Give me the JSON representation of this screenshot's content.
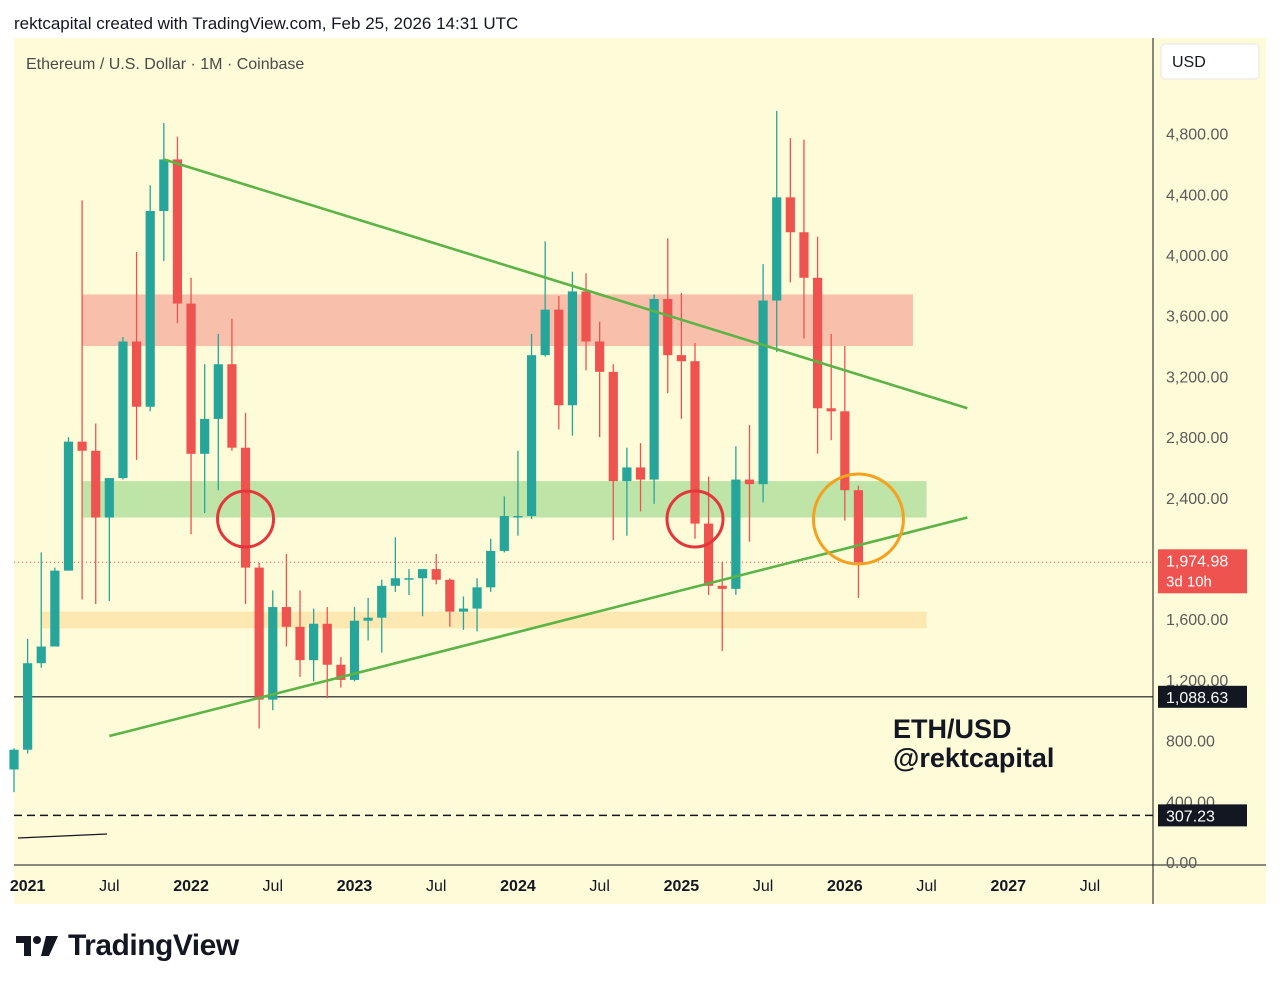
{
  "header": {
    "attribution": "rektcapital created with TradingView.com, Feb 25, 2026 14:31 UTC"
  },
  "chart_header": {
    "symbol_info": "Ethereum / U.S. Dollar · 1M · Coinbase",
    "currency_button": "USD"
  },
  "watermark": {
    "line1": "ETH/USD",
    "line2": "@rektcapital"
  },
  "footer": {
    "brand": "TradingView"
  },
  "colors": {
    "background": "#fefbd9",
    "up": "#26a69a",
    "down": "#ef5350",
    "trendline": "#5cb346",
    "resistance_zone": "#f7b8a4",
    "support_zone": "#b7e1a1",
    "lower_zone": "#fde5ac",
    "circle_red": "#e5373b",
    "circle_orange": "#f4a120"
  },
  "chart_data": {
    "type": "candlestick",
    "title": "Ethereum / U.S. Dollar · 1M · Coinbase",
    "y_scale": "linear",
    "ylim": [
      0,
      5300
    ],
    "y_ticks": [
      {
        "value": 4800,
        "label": "4,800.00"
      },
      {
        "value": 4400,
        "label": "4,400.00"
      },
      {
        "value": 4000,
        "label": "4,000.00"
      },
      {
        "value": 3600,
        "label": "3,600.00"
      },
      {
        "value": 3200,
        "label": "3,200.00"
      },
      {
        "value": 2800,
        "label": "2,800.00"
      },
      {
        "value": 2400,
        "label": "2,400.00"
      },
      {
        "value": 1600,
        "label": "1,600.00"
      },
      {
        "value": 1200,
        "label": "1,200.00"
      },
      {
        "value": 800,
        "label": "800.00"
      },
      {
        "value": 400,
        "label": "400.00"
      },
      {
        "value": 0,
        "label": "0.00"
      }
    ],
    "x_ticks": [
      {
        "date": "2021-01",
        "label": "2021",
        "bold": true
      },
      {
        "date": "2021-07",
        "label": "Jul",
        "bold": false
      },
      {
        "date": "2022-01",
        "label": "2022",
        "bold": true
      },
      {
        "date": "2022-07",
        "label": "Jul",
        "bold": false
      },
      {
        "date": "2023-01",
        "label": "2023",
        "bold": true
      },
      {
        "date": "2023-07",
        "label": "Jul",
        "bold": false
      },
      {
        "date": "2024-01",
        "label": "2024",
        "bold": true
      },
      {
        "date": "2024-07",
        "label": "Jul",
        "bold": false
      },
      {
        "date": "2025-01",
        "label": "2025",
        "bold": true
      },
      {
        "date": "2025-07",
        "label": "Jul",
        "bold": false
      },
      {
        "date": "2026-01",
        "label": "2026",
        "bold": true
      },
      {
        "date": "2026-07",
        "label": "Jul",
        "bold": false
      },
      {
        "date": "2027-01",
        "label": "2027",
        "bold": true
      },
      {
        "date": "2027-07",
        "label": "Jul",
        "bold": false
      }
    ],
    "candles": [
      {
        "date": "2020-12",
        "o": 610,
        "h": 750,
        "l": 460,
        "c": 740
      },
      {
        "date": "2021-01",
        "o": 740,
        "h": 1470,
        "l": 715,
        "c": 1310
      },
      {
        "date": "2021-02",
        "o": 1310,
        "h": 2040,
        "l": 1280,
        "c": 1420
      },
      {
        "date": "2021-03",
        "o": 1420,
        "h": 1940,
        "l": 1430,
        "c": 1920
      },
      {
        "date": "2021-04",
        "o": 1920,
        "h": 2800,
        "l": 1920,
        "c": 2770
      },
      {
        "date": "2021-05",
        "o": 2770,
        "h": 4360,
        "l": 1730,
        "c": 2710
      },
      {
        "date": "2021-06",
        "o": 2710,
        "h": 2890,
        "l": 1700,
        "c": 2270
      },
      {
        "date": "2021-07",
        "o": 2270,
        "h": 2530,
        "l": 1720,
        "c": 2530
      },
      {
        "date": "2021-08",
        "o": 2530,
        "h": 3460,
        "l": 2520,
        "c": 3430
      },
      {
        "date": "2021-09",
        "o": 3430,
        "h": 4020,
        "l": 2650,
        "c": 3000
      },
      {
        "date": "2021-10",
        "o": 3000,
        "h": 4460,
        "l": 2970,
        "c": 4290
      },
      {
        "date": "2021-11",
        "o": 4290,
        "h": 4870,
        "l": 3960,
        "c": 4630
      },
      {
        "date": "2021-12",
        "o": 4630,
        "h": 4780,
        "l": 3550,
        "c": 3680
      },
      {
        "date": "2022-01",
        "o": 3680,
        "h": 3850,
        "l": 2160,
        "c": 2690
      },
      {
        "date": "2022-02",
        "o": 2690,
        "h": 3280,
        "l": 2300,
        "c": 2920
      },
      {
        "date": "2022-03",
        "o": 2920,
        "h": 3480,
        "l": 2450,
        "c": 3280
      },
      {
        "date": "2022-04",
        "o": 3280,
        "h": 3580,
        "l": 2710,
        "c": 2730
      },
      {
        "date": "2022-05",
        "o": 2730,
        "h": 2960,
        "l": 1700,
        "c": 1940
      },
      {
        "date": "2022-06",
        "o": 1940,
        "h": 1970,
        "l": 880,
        "c": 1070
      },
      {
        "date": "2022-07",
        "o": 1070,
        "h": 1790,
        "l": 1000,
        "c": 1680
      },
      {
        "date": "2022-08",
        "o": 1680,
        "h": 2030,
        "l": 1420,
        "c": 1550
      },
      {
        "date": "2022-09",
        "o": 1550,
        "h": 1790,
        "l": 1220,
        "c": 1330
      },
      {
        "date": "2022-10",
        "o": 1330,
        "h": 1670,
        "l": 1190,
        "c": 1570
      },
      {
        "date": "2022-11",
        "o": 1570,
        "h": 1680,
        "l": 1080,
        "c": 1300
      },
      {
        "date": "2022-12",
        "o": 1300,
        "h": 1350,
        "l": 1150,
        "c": 1200
      },
      {
        "date": "2023-01",
        "o": 1200,
        "h": 1680,
        "l": 1190,
        "c": 1590
      },
      {
        "date": "2023-02",
        "o": 1590,
        "h": 1740,
        "l": 1460,
        "c": 1610
      },
      {
        "date": "2023-03",
        "o": 1610,
        "h": 1860,
        "l": 1380,
        "c": 1820
      },
      {
        "date": "2023-04",
        "o": 1820,
        "h": 2140,
        "l": 1780,
        "c": 1870
      },
      {
        "date": "2023-05",
        "o": 1870,
        "h": 1930,
        "l": 1760,
        "c": 1870
      },
      {
        "date": "2023-06",
        "o": 1870,
        "h": 1930,
        "l": 1620,
        "c": 1930
      },
      {
        "date": "2023-07",
        "o": 1930,
        "h": 2030,
        "l": 1830,
        "c": 1860
      },
      {
        "date": "2023-08",
        "o": 1860,
        "h": 1870,
        "l": 1550,
        "c": 1650
      },
      {
        "date": "2023-09",
        "o": 1650,
        "h": 1750,
        "l": 1530,
        "c": 1670
      },
      {
        "date": "2023-10",
        "o": 1670,
        "h": 1870,
        "l": 1520,
        "c": 1810
      },
      {
        "date": "2023-11",
        "o": 1810,
        "h": 2130,
        "l": 1780,
        "c": 2050
      },
      {
        "date": "2023-12",
        "o": 2050,
        "h": 2410,
        "l": 2040,
        "c": 2280
      },
      {
        "date": "2024-01",
        "o": 2280,
        "h": 2710,
        "l": 2150,
        "c": 2280
      },
      {
        "date": "2024-02",
        "o": 2280,
        "h": 3480,
        "l": 2260,
        "c": 3340
      },
      {
        "date": "2024-03",
        "o": 3340,
        "h": 4090,
        "l": 3330,
        "c": 3640
      },
      {
        "date": "2024-04",
        "o": 3640,
        "h": 3730,
        "l": 2850,
        "c": 3010
      },
      {
        "date": "2024-05",
        "o": 3010,
        "h": 3890,
        "l": 2810,
        "c": 3760
      },
      {
        "date": "2024-06",
        "o": 3760,
        "h": 3880,
        "l": 3240,
        "c": 3430
      },
      {
        "date": "2024-07",
        "o": 3430,
        "h": 3560,
        "l": 2800,
        "c": 3230
      },
      {
        "date": "2024-08",
        "o": 3230,
        "h": 3280,
        "l": 2120,
        "c": 2510
      },
      {
        "date": "2024-09",
        "o": 2510,
        "h": 2730,
        "l": 2150,
        "c": 2600
      },
      {
        "date": "2024-10",
        "o": 2600,
        "h": 2760,
        "l": 2310,
        "c": 2520
      },
      {
        "date": "2024-11",
        "o": 2520,
        "h": 3740,
        "l": 2360,
        "c": 3710
      },
      {
        "date": "2024-12",
        "o": 3710,
        "h": 4110,
        "l": 3090,
        "c": 3340
      },
      {
        "date": "2025-01",
        "o": 3340,
        "h": 3750,
        "l": 2920,
        "c": 3300
      },
      {
        "date": "2025-02",
        "o": 3300,
        "h": 3420,
        "l": 2130,
        "c": 2230
      },
      {
        "date": "2025-03",
        "o": 2230,
        "h": 2540,
        "l": 1760,
        "c": 1820
      },
      {
        "date": "2025-04",
        "o": 1820,
        "h": 1980,
        "l": 1390,
        "c": 1800
      },
      {
        "date": "2025-05",
        "o": 1800,
        "h": 2740,
        "l": 1760,
        "c": 2520
      },
      {
        "date": "2025-06",
        "o": 2520,
        "h": 2880,
        "l": 2110,
        "c": 2490
      },
      {
        "date": "2025-07",
        "o": 2490,
        "h": 3940,
        "l": 2370,
        "c": 3700
      },
      {
        "date": "2025-08",
        "o": 3700,
        "h": 4950,
        "l": 3360,
        "c": 4380
      },
      {
        "date": "2025-09",
        "o": 4380,
        "h": 4770,
        "l": 3820,
        "c": 4150
      },
      {
        "date": "2025-10",
        "o": 4150,
        "h": 4760,
        "l": 3450,
        "c": 3850
      },
      {
        "date": "2025-11",
        "o": 3850,
        "h": 4120,
        "l": 2690,
        "c": 2990
      },
      {
        "date": "2025-12",
        "o": 2990,
        "h": 3480,
        "l": 2780,
        "c": 2970
      },
      {
        "date": "2026-01",
        "o": 2970,
        "h": 3400,
        "l": 2250,
        "c": 2450
      },
      {
        "date": "2026-02",
        "o": 2450,
        "h": 2480,
        "l": 1740,
        "c": 1975
      }
    ],
    "zones": [
      {
        "name": "resistance",
        "y_from": 3400,
        "y_to": 3740,
        "x_from": "2021-05",
        "x_to": "2026-06"
      },
      {
        "name": "support",
        "y_from": 2270,
        "y_to": 2510,
        "x_from": "2021-05",
        "x_to": "2026-07"
      },
      {
        "name": "lower-support",
        "y_from": 1540,
        "y_to": 1650,
        "x_from": "2021-02",
        "x_to": "2026-07"
      }
    ],
    "trendlines": [
      {
        "name": "descending-resistance",
        "from": {
          "date": "2021-11",
          "price": 4630
        },
        "to": {
          "date": "2026-10",
          "price": 2990
        }
      },
      {
        "name": "ascending-support",
        "from": {
          "date": "2021-07",
          "price": 830
        },
        "to": {
          "date": "2026-10",
          "price": 2270
        }
      }
    ],
    "horizontal_lines": [
      {
        "name": "current-price",
        "price": 1974.98,
        "style": "dotted"
      },
      {
        "name": "level-1088",
        "price": 1088.63,
        "style": "solid"
      },
      {
        "name": "level-307",
        "price": 307.23,
        "style": "dashed"
      }
    ],
    "circles": [
      {
        "name": "circle-2022",
        "date": "2022-05",
        "price": 2260,
        "color": "red"
      },
      {
        "name": "circle-2025",
        "date": "2025-02",
        "price": 2260,
        "color": "red"
      },
      {
        "name": "circle-2026",
        "date": "2026-02",
        "price": 2260,
        "color": "orange"
      }
    ],
    "price_labels": [
      {
        "name": "current",
        "value": "1,974.98",
        "sub": "3d 10h",
        "price": 1974.98
      },
      {
        "name": "level-1088",
        "value": "1,088.63",
        "price": 1088.63
      },
      {
        "name": "level-307",
        "value": "307.23",
        "price": 307.23
      }
    ]
  }
}
